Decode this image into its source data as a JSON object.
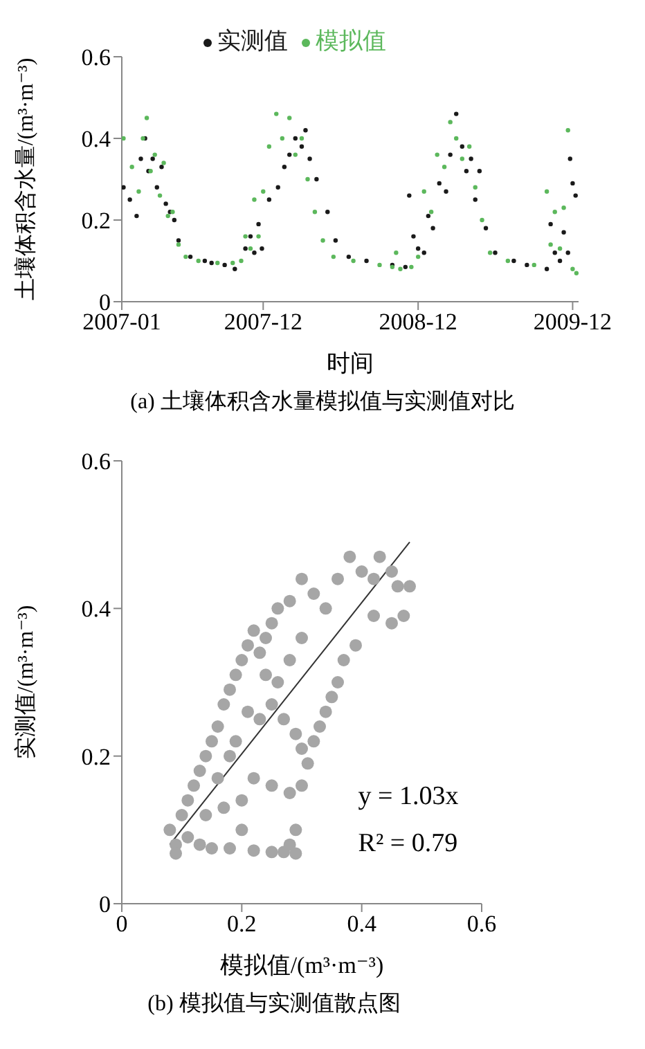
{
  "chart_data": [
    {
      "type": "scatter",
      "xlabel": "时间",
      "ylabel": "土壤体积含水量/(m³·m⁻³)",
      "legend": "top",
      "marker": "circle",
      "grid": false,
      "xlim": [
        "2007-01-01",
        "2009-12-15"
      ],
      "xticks": [
        "2007-01",
        "2007-12",
        "2008-12",
        "2009-12"
      ],
      "ylim": [
        0,
        0.6
      ],
      "yticks": [
        0,
        0.2,
        0.4,
        0.6
      ],
      "annotations": [
        "(a) 土壤体积含水量模拟值与实测值对比"
      ],
      "series": [
        {
          "name": "实测值",
          "color": "#1a1a1a",
          "x": [
            "2007-01-05",
            "2007-01-20",
            "2007-02-05",
            "2007-02-15",
            "2007-02-25",
            "2007-03-05",
            "2007-03-15",
            "2007-03-25",
            "2007-04-05",
            "2007-04-15",
            "2007-04-25",
            "2007-05-05",
            "2007-05-15",
            "2007-06-12",
            "2007-07-16",
            "2007-08-01",
            "2007-09-01",
            "2007-09-25",
            "2007-10-20",
            "2007-11-01",
            "2007-11-10",
            "2007-11-20",
            "2007-11-28",
            "2007-12-15",
            "2008-01-05",
            "2008-01-20",
            "2008-02-01",
            "2008-02-15",
            "2008-03-01",
            "2008-03-10",
            "2008-03-20",
            "2008-04-05",
            "2008-05-01",
            "2008-05-20",
            "2008-06-20",
            "2008-08-01",
            "2008-10-01",
            "2008-11-01",
            "2008-11-10",
            "2008-11-20",
            "2008-12-01",
            "2008-12-15",
            "2008-12-25",
            "2009-01-05",
            "2009-01-20",
            "2009-02-05",
            "2009-02-15",
            "2009-03-01",
            "2009-03-15",
            "2009-03-25",
            "2009-04-05",
            "2009-04-15",
            "2009-04-25",
            "2009-05-10",
            "2009-06-01",
            "2009-07-15",
            "2009-08-15",
            "2009-10-01",
            "2009-10-10",
            "2009-10-20",
            "2009-11-01",
            "2009-11-10",
            "2009-11-20",
            "2009-11-25",
            "2009-12-01",
            "2009-12-08"
          ],
          "values": [
            0.28,
            0.25,
            0.21,
            0.35,
            0.4,
            0.32,
            0.35,
            0.28,
            0.33,
            0.24,
            0.22,
            0.2,
            0.15,
            0.11,
            0.1,
            0.095,
            0.09,
            0.08,
            0.13,
            0.16,
            0.12,
            0.19,
            0.13,
            0.25,
            0.28,
            0.33,
            0.36,
            0.4,
            0.38,
            0.42,
            0.35,
            0.3,
            0.22,
            0.15,
            0.11,
            0.1,
            0.09,
            0.085,
            0.26,
            0.16,
            0.13,
            0.12,
            0.21,
            0.18,
            0.29,
            0.27,
            0.36,
            0.46,
            0.38,
            0.32,
            0.35,
            0.25,
            0.32,
            0.18,
            0.12,
            0.1,
            0.09,
            0.08,
            0.19,
            0.12,
            0.1,
            0.17,
            0.12,
            0.35,
            0.29,
            0.26
          ]
        },
        {
          "name": "模拟值",
          "color": "#5cb85c",
          "x": [
            "2007-01-05",
            "2007-01-25",
            "2007-02-10",
            "2007-02-20",
            "2007-03-01",
            "2007-03-10",
            "2007-03-20",
            "2007-04-01",
            "2007-04-10",
            "2007-04-20",
            "2007-05-01",
            "2007-05-15",
            "2007-06-01",
            "2007-07-01",
            "2007-08-15",
            "2007-09-20",
            "2007-10-10",
            "2007-10-20",
            "2007-11-01",
            "2007-11-10",
            "2007-11-20",
            "2007-12-01",
            "2007-12-15",
            "2008-01-01",
            "2008-01-15",
            "2008-02-01",
            "2008-02-15",
            "2008-03-01",
            "2008-03-15",
            "2008-04-01",
            "2008-04-20",
            "2008-05-15",
            "2008-07-01",
            "2008-09-01",
            "2008-10-01",
            "2008-10-10",
            "2008-10-20",
            "2008-11-15",
            "2008-12-01",
            "2008-12-15",
            "2009-01-01",
            "2009-01-15",
            "2009-02-01",
            "2009-02-15",
            "2009-03-01",
            "2009-03-15",
            "2009-04-01",
            "2009-04-15",
            "2009-05-01",
            "2009-05-20",
            "2009-07-01",
            "2009-09-01",
            "2009-10-01",
            "2009-10-10",
            "2009-10-20",
            "2009-11-01",
            "2009-11-10",
            "2009-11-20",
            "2009-12-01",
            "2009-12-10"
          ],
          "values": [
            0.4,
            0.33,
            0.27,
            0.4,
            0.45,
            0.32,
            0.36,
            0.26,
            0.34,
            0.21,
            0.22,
            0.14,
            0.11,
            0.1,
            0.095,
            0.095,
            0.1,
            0.16,
            0.13,
            0.25,
            0.16,
            0.27,
            0.38,
            0.46,
            0.4,
            0.45,
            0.36,
            0.4,
            0.3,
            0.22,
            0.15,
            0.11,
            0.1,
            0.09,
            0.085,
            0.12,
            0.08,
            0.085,
            0.11,
            0.27,
            0.22,
            0.36,
            0.33,
            0.44,
            0.4,
            0.35,
            0.38,
            0.28,
            0.2,
            0.12,
            0.1,
            0.09,
            0.27,
            0.14,
            0.22,
            0.13,
            0.23,
            0.42,
            0.08,
            0.07
          ]
        }
      ]
    },
    {
      "type": "scatter",
      "xlabel": "模拟值/(m³·m⁻³)",
      "ylabel": "实测值/(m³·m⁻³)",
      "marker": "circle",
      "grid": false,
      "xlim": [
        0,
        0.6
      ],
      "xticks": [
        0,
        0.2,
        0.4,
        0.6
      ],
      "ylim": [
        0,
        0.6
      ],
      "yticks": [
        0,
        0.2,
        0.4,
        0.6
      ],
      "annotations": [
        "y = 1.03x",
        "R² = 0.79",
        "(b) 模拟值与实测值散点图"
      ],
      "series": [
        {
          "color": "#a6a6a6",
          "x": [
            0.08,
            0.09,
            0.1,
            0.11,
            0.12,
            0.13,
            0.14,
            0.15,
            0.16,
            0.17,
            0.18,
            0.19,
            0.2,
            0.21,
            0.22,
            0.23,
            0.24,
            0.25,
            0.26,
            0.28,
            0.3,
            0.32,
            0.34,
            0.36,
            0.38,
            0.4,
            0.42,
            0.43,
            0.45,
            0.46,
            0.48,
            0.47,
            0.45,
            0.42,
            0.39,
            0.37,
            0.36,
            0.35,
            0.34,
            0.33,
            0.32,
            0.31,
            0.3,
            0.29,
            0.27,
            0.25,
            0.23,
            0.21,
            0.19,
            0.22,
            0.25,
            0.28,
            0.3,
            0.2,
            0.17,
            0.14,
            0.18,
            0.16,
            0.26,
            0.28,
            0.3,
            0.24,
            0.11,
            0.13,
            0.15,
            0.18,
            0.2,
            0.22,
            0.25,
            0.27,
            0.28,
            0.29,
            0.29,
            0.09
          ],
          "values": [
            0.1,
            0.08,
            0.12,
            0.14,
            0.16,
            0.18,
            0.2,
            0.22,
            0.24,
            0.27,
            0.29,
            0.31,
            0.33,
            0.35,
            0.37,
            0.34,
            0.36,
            0.38,
            0.4,
            0.41,
            0.44,
            0.42,
            0.4,
            0.44,
            0.47,
            0.45,
            0.44,
            0.47,
            0.45,
            0.43,
            0.43,
            0.39,
            0.38,
            0.39,
            0.35,
            0.33,
            0.3,
            0.28,
            0.26,
            0.24,
            0.22,
            0.19,
            0.21,
            0.23,
            0.25,
            0.27,
            0.25,
            0.26,
            0.22,
            0.17,
            0.16,
            0.15,
            0.16,
            0.14,
            0.13,
            0.12,
            0.2,
            0.17,
            0.3,
            0.33,
            0.36,
            0.31,
            0.09,
            0.08,
            0.075,
            0.075,
            0.1,
            0.072,
            0.07,
            0.07,
            0.08,
            0.1,
            0.068,
            0.068
          ]
        },
        {
          "type": "line",
          "marker": "none",
          "color": "#333333",
          "x": [
            0.08,
            0.48
          ],
          "values": [
            0.08,
            0.49
          ]
        }
      ]
    }
  ]
}
